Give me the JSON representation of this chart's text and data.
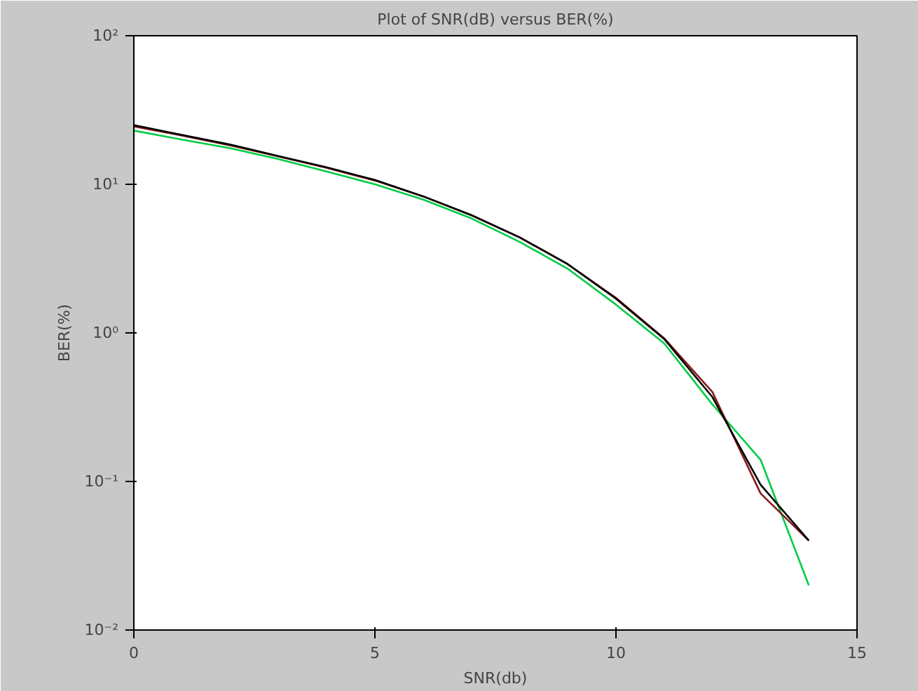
{
  "chart_data": {
    "type": "line",
    "title": "Plot of SNR(dB) versus BER(%)",
    "xlabel": "SNR(db)",
    "ylabel": "BER(%)",
    "log": "y",
    "grid": false,
    "marker": "none",
    "x": [
      0,
      1,
      2,
      3,
      4,
      5,
      6,
      7,
      8,
      9,
      10,
      11,
      12,
      13,
      14
    ],
    "series": [
      {
        "color": "#00cc44",
        "values": [
          23,
          20,
          17.5,
          14.8,
          12.2,
          10,
          7.9,
          5.9,
          4.1,
          2.7,
          1.55,
          0.85,
          0.33,
          0.14,
          0.02
        ]
      },
      {
        "color": "#8b1a1a",
        "values": [
          24.5,
          21.3,
          18.3,
          15.4,
          12.9,
          10.6,
          8.3,
          6.2,
          4.4,
          2.9,
          1.72,
          0.92,
          0.4,
          0.083,
          0.04
        ]
      },
      {
        "color": "#000000",
        "values": [
          25,
          21.5,
          18.5,
          15.5,
          13,
          10.7,
          8.3,
          6.2,
          4.4,
          2.9,
          1.7,
          0.91,
          0.37,
          0.095,
          0.04
        ]
      }
    ],
    "xlim": [
      0,
      15
    ],
    "xticks": [
      0,
      5,
      10,
      15
    ],
    "ylim": [
      0.01,
      100
    ],
    "yticks": [
      {
        "value": 0.01,
        "label": "10⁻²"
      },
      {
        "value": 0.1,
        "label": "10⁻¹"
      },
      {
        "value": 1,
        "label": "10⁰"
      },
      {
        "value": 10,
        "label": "10¹"
      },
      {
        "value": 100,
        "label": "10²"
      }
    ]
  }
}
